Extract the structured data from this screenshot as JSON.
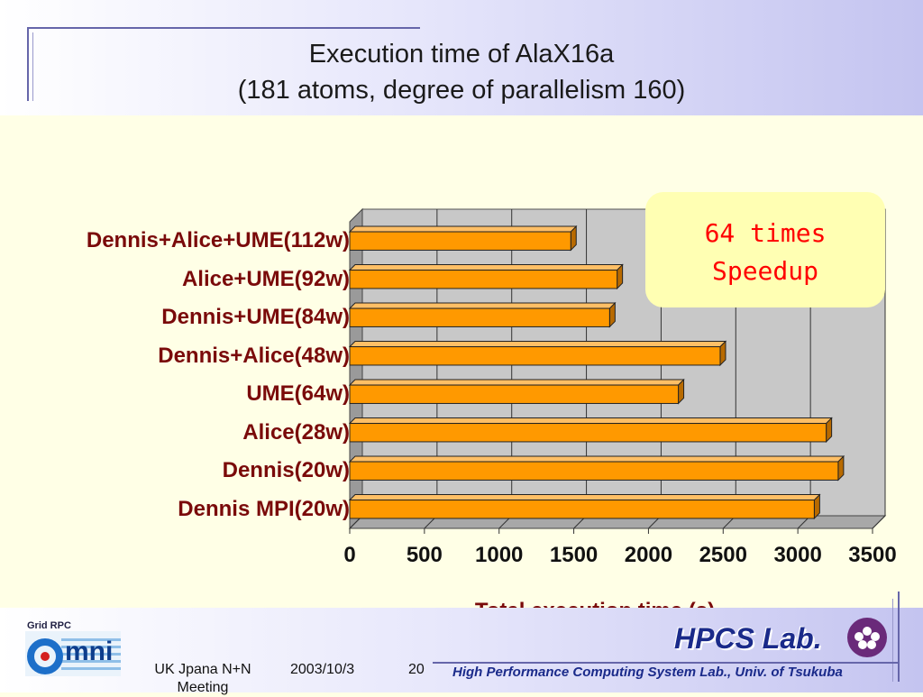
{
  "slide": {
    "title_line1": "Execution time of AlaX16a",
    "title_line2": "(181 atoms, degree of parallelism 160)"
  },
  "callout": {
    "text": "64 times\nSpeedup",
    "color": "#ff0000",
    "background": "#ffffb3"
  },
  "chart_data": {
    "type": "bar",
    "orientation": "horizontal",
    "style": "3d",
    "categories": [
      "Dennis+Alice+UME(112w)",
      "Alice+UME(92w)",
      "Dennis+UME(84w)",
      "Dennis+Alice(48w)",
      "UME(64w)",
      "Alice(28w)",
      "Dennis(20w)",
      "Dennis MPI(20w)"
    ],
    "values": [
      1480,
      1790,
      1740,
      2480,
      2200,
      3190,
      3270,
      3110
    ],
    "xlabel": "Total execution time (s)",
    "xlim": [
      0,
      3500
    ],
    "xticks": [
      "0",
      "500",
      "1000",
      "1500",
      "2000",
      "2500",
      "3000",
      "3500"
    ],
    "grid": true,
    "bar_color": "#ff9900",
    "label_color": "#7a0a0a"
  },
  "footer": {
    "logo_text": "Grid RPC",
    "meeting": "UK Jpana N+N Meeting",
    "date": "2003/10/3",
    "page": "20",
    "lab_name": "HPCS Lab.",
    "lab_full": "High Performance Computing System Lab., Univ. of Tsukuba"
  },
  "colors": {
    "accent": "#1a2a8a",
    "slide_background": "#ffffe6"
  }
}
